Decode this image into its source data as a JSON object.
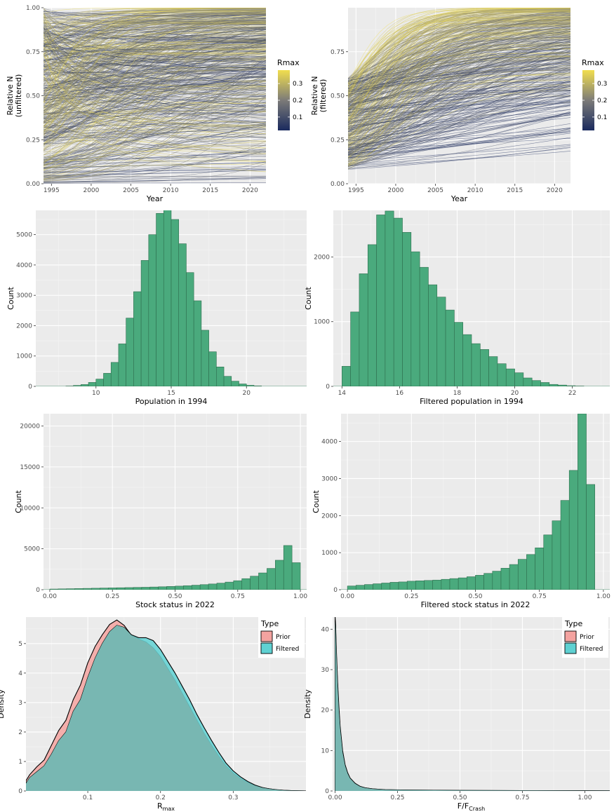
{
  "chart_data": [
    {
      "id": "p1",
      "type": "line",
      "xlabel": "Year",
      "ylabel": [
        "Relative N",
        "(unfiltered)"
      ],
      "xlim": [
        1994,
        2022
      ],
      "ylim": [
        0,
        1
      ],
      "xticks": [
        1995,
        2000,
        2005,
        2010,
        2015,
        2020
      ],
      "yticks": [
        0,
        0.25,
        0.5,
        0.75,
        1
      ],
      "ytick_labels": [
        "0.00",
        "0.25",
        "0.50",
        "0.75",
        "1.00"
      ],
      "colorbar": {
        "title": "Rmax",
        "range": [
          0.02,
          0.38
        ],
        "ticks": [
          0.1,
          0.2,
          0.3
        ],
        "tick_labels": [
          "0.1",
          "0.2",
          "0.3"
        ],
        "low_color": "#1a2a5e",
        "mid_color": "#7c7b78",
        "high_color": "#f1de4e"
      },
      "series_description": "thousands of logistic trajectories colored by Rmax",
      "n_trajectories": 600,
      "start_range": [
        0,
        1
      ],
      "rmax_range": [
        0.02,
        0.38
      ]
    },
    {
      "id": "p2",
      "type": "line",
      "xlabel": "Year",
      "ylabel": [
        "Relative N",
        "(filtered)"
      ],
      "xlim": [
        1994,
        2022
      ],
      "ylim": [
        0,
        1
      ],
      "xticks": [
        1995,
        2000,
        2005,
        2010,
        2015,
        2020
      ],
      "yticks": [
        0,
        0.25,
        0.5,
        0.75
      ],
      "ytick_labels": [
        "0.00",
        "0.25",
        "0.50",
        "0.75"
      ],
      "colorbar": {
        "title": "Rmax",
        "range": [
          0.02,
          0.38
        ],
        "ticks": [
          0.1,
          0.2,
          0.3
        ],
        "tick_labels": [
          "0.1",
          "0.2",
          "0.3"
        ],
        "low_color": "#1a2a5e",
        "mid_color": "#7c7b78",
        "high_color": "#f1de4e"
      },
      "n_trajectories": 450,
      "start_range": [
        0.08,
        0.6
      ],
      "rmax_range": [
        0.02,
        0.38
      ]
    },
    {
      "id": "p3",
      "type": "bar",
      "xlabel": "Population in 1994",
      "ylabel": "Count",
      "xlim": [
        6,
        24
      ],
      "ylim": [
        0,
        5800
      ],
      "xticks": [
        10,
        15,
        20
      ],
      "yticks": [
        0,
        1000,
        2000,
        3000,
        4000,
        5000
      ],
      "bin_start": 6.5,
      "bin_width": 0.5,
      "values": [
        0,
        0,
        0,
        10,
        30,
        60,
        130,
        240,
        430,
        790,
        1400,
        2250,
        3120,
        4150,
        5000,
        5700,
        5950,
        5500,
        4700,
        3750,
        2820,
        1850,
        1140,
        640,
        330,
        170,
        80,
        35,
        15,
        0,
        0,
        0,
        0,
        0,
        0
      ]
    },
    {
      "id": "p4",
      "type": "bar",
      "xlabel": "Filtered population in 1994",
      "ylabel": "Count",
      "xlim": [
        13.7,
        23.3
      ],
      "ylim": [
        0,
        2720
      ],
      "xticks": [
        14,
        16,
        18,
        20,
        22
      ],
      "yticks": [
        0,
        1000,
        2000
      ],
      "bin_start": 14.0,
      "bin_width": 0.3,
      "values": [
        310,
        1150,
        1740,
        2190,
        2650,
        2710,
        2600,
        2380,
        2080,
        1840,
        1570,
        1380,
        1180,
        990,
        800,
        660,
        570,
        460,
        350,
        270,
        210,
        130,
        90,
        60,
        30,
        20,
        10,
        5,
        0,
        0,
        0
      ]
    },
    {
      "id": "p5",
      "type": "bar",
      "xlabel": "Stock status in 2022",
      "ylabel": "Count",
      "xlim": [
        -0.025,
        1.025
      ],
      "ylim": [
        0,
        21500
      ],
      "xticks": [
        0,
        0.25,
        0.5,
        0.75,
        1
      ],
      "xtick_labels": [
        "0.00",
        "0.25",
        "0.50",
        "0.75",
        "1.00"
      ],
      "yticks": [
        0,
        5000,
        10000,
        15000,
        20000
      ],
      "bin_start": 0.0,
      "bin_width": 0.03333,
      "values": [
        80,
        100,
        120,
        140,
        160,
        180,
        200,
        220,
        240,
        260,
        280,
        300,
        330,
        360,
        400,
        440,
        490,
        550,
        620,
        700,
        800,
        930,
        1100,
        1350,
        1650,
        2050,
        2600,
        3600,
        5400,
        3300
      ]
    },
    {
      "id": "p6",
      "type": "bar",
      "xlabel": "Filtered stock status in 2022",
      "ylabel": "Count",
      "xlim": [
        -0.025,
        1.025
      ],
      "ylim": [
        0,
        4750
      ],
      "xticks": [
        0,
        0.25,
        0.5,
        0.75,
        1
      ],
      "xtick_labels": [
        "0.00",
        "0.25",
        "0.50",
        "0.75",
        "1.00"
      ],
      "yticks": [
        0,
        1000,
        2000,
        3000,
        4000
      ],
      "bin_start": 0.0,
      "bin_width": 0.03333,
      "values": [
        100,
        120,
        140,
        160,
        180,
        200,
        210,
        230,
        240,
        250,
        260,
        280,
        300,
        320,
        350,
        390,
        440,
        500,
        580,
        680,
        820,
        950,
        1130,
        1480,
        1860,
        2410,
        3220,
        4750,
        2840
      ]
    },
    {
      "id": "p7",
      "type": "area",
      "xlabel": "R",
      "xlabel_sub": "max",
      "ylabel": "Density",
      "xlim": [
        0.015,
        0.4
      ],
      "ylim": [
        0,
        5.9
      ],
      "xticks": [
        0.1,
        0.2,
        0.3
      ],
      "yticks": [
        0,
        1,
        2,
        3,
        4,
        5
      ],
      "legend": {
        "title": "Type",
        "position": "top-right",
        "entries": [
          "Prior",
          "Filtered"
        ]
      },
      "series": [
        {
          "name": "Prior",
          "color": "#f4a3a0",
          "x": [
            0.015,
            0.02,
            0.03,
            0.04,
            0.05,
            0.06,
            0.07,
            0.08,
            0.09,
            0.1,
            0.11,
            0.12,
            0.13,
            0.14,
            0.15,
            0.16,
            0.17,
            0.18,
            0.19,
            0.2,
            0.21,
            0.22,
            0.23,
            0.24,
            0.25,
            0.26,
            0.27,
            0.28,
            0.29,
            0.3,
            0.31,
            0.32,
            0.33,
            0.34,
            0.35,
            0.36,
            0.37,
            0.38,
            0.39,
            0.4
          ],
          "y": [
            0.35,
            0.55,
            0.82,
            1.05,
            1.55,
            2.05,
            2.4,
            3.1,
            3.6,
            4.35,
            4.9,
            5.3,
            5.65,
            5.8,
            5.62,
            5.28,
            5.15,
            5.05,
            4.85,
            4.55,
            4.15,
            3.75,
            3.3,
            2.85,
            2.4,
            1.95,
            1.55,
            1.18,
            0.85,
            0.6,
            0.42,
            0.28,
            0.18,
            0.11,
            0.07,
            0.04,
            0.02,
            0.01,
            0.005,
            0
          ]
        },
        {
          "name": "Filtered",
          "color": "#5fd1d2",
          "x": [
            0.015,
            0.02,
            0.03,
            0.04,
            0.05,
            0.06,
            0.07,
            0.08,
            0.09,
            0.1,
            0.11,
            0.12,
            0.13,
            0.14,
            0.15,
            0.16,
            0.17,
            0.18,
            0.19,
            0.2,
            0.21,
            0.22,
            0.23,
            0.24,
            0.25,
            0.26,
            0.27,
            0.28,
            0.29,
            0.3,
            0.31,
            0.32,
            0.33,
            0.34,
            0.35,
            0.36,
            0.37,
            0.38,
            0.39,
            0.4
          ],
          "y": [
            0.25,
            0.45,
            0.65,
            0.85,
            1.25,
            1.7,
            2.0,
            2.7,
            3.1,
            3.85,
            4.5,
            5.0,
            5.4,
            5.62,
            5.55,
            5.3,
            5.2,
            5.2,
            5.1,
            4.8,
            4.4,
            4.0,
            3.55,
            3.1,
            2.6,
            2.15,
            1.72,
            1.32,
            0.95,
            0.68,
            0.48,
            0.32,
            0.2,
            0.12,
            0.07,
            0.04,
            0.02,
            0.01,
            0.005,
            0
          ]
        }
      ]
    },
    {
      "id": "p8",
      "type": "area",
      "xlabel": "F/F",
      "xlabel_sub": "Crash",
      "ylabel": "Density",
      "xlim": [
        -0.01,
        1.1
      ],
      "ylim": [
        0,
        43
      ],
      "xticks": [
        0,
        0.25,
        0.5,
        0.75,
        1
      ],
      "xtick_labels": [
        "0.00",
        "0.25",
        "0.50",
        "0.75",
        "1.00"
      ],
      "yticks": [
        0,
        10,
        20,
        30,
        40
      ],
      "legend": {
        "title": "Type",
        "position": "top-right",
        "entries": [
          "Prior",
          "Filtered"
        ]
      },
      "series": [
        {
          "name": "Prior",
          "color": "#f4a3a0",
          "x": [
            0.0,
            0.002,
            0.005,
            0.01,
            0.015,
            0.02,
            0.03,
            0.04,
            0.05,
            0.06,
            0.08,
            0.1,
            0.12,
            0.15,
            0.2,
            0.3,
            0.5,
            0.75,
            1.0,
            1.1
          ],
          "y": [
            42,
            40,
            34,
            26,
            20,
            15.5,
            9.5,
            6.2,
            4.3,
            3.1,
            1.8,
            1.1,
            0.75,
            0.5,
            0.3,
            0.2,
            0.12,
            0.08,
            0.05,
            0.04
          ]
        },
        {
          "name": "Filtered",
          "color": "#5fd1d2",
          "x": [
            0.0,
            0.002,
            0.005,
            0.01,
            0.015,
            0.02,
            0.03,
            0.04,
            0.05,
            0.06,
            0.08,
            0.1,
            0.12,
            0.15,
            0.2,
            0.3,
            0.5,
            0.75,
            1.0,
            1.1
          ],
          "y": [
            43,
            41,
            35,
            27,
            21,
            16,
            10,
            6.5,
            4.5,
            3.2,
            1.9,
            1.15,
            0.78,
            0.52,
            0.31,
            0.2,
            0.12,
            0.08,
            0.05,
            0.04
          ]
        }
      ]
    }
  ]
}
